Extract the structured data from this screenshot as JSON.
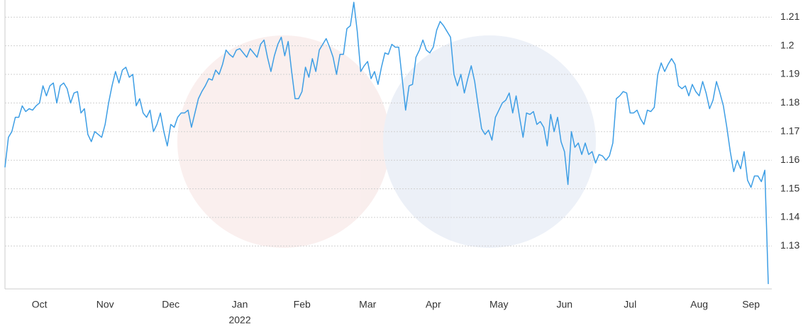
{
  "chart_data": {
    "type": "line",
    "values": [
      1.1575,
      1.168,
      1.17,
      1.175,
      1.175,
      1.179,
      1.177,
      1.178,
      1.1775,
      1.179,
      1.18,
      1.186,
      1.1825,
      1.186,
      1.187,
      1.18,
      1.186,
      1.187,
      1.185,
      1.18,
      1.1835,
      1.184,
      1.1765,
      1.178,
      1.169,
      1.1665,
      1.17,
      1.169,
      1.168,
      1.1725,
      1.18,
      1.186,
      1.191,
      1.187,
      1.1915,
      1.1925,
      1.189,
      1.19,
      1.179,
      1.1815,
      1.1765,
      1.175,
      1.1775,
      1.17,
      1.1725,
      1.1765,
      1.17,
      1.165,
      1.1725,
      1.1715,
      1.175,
      1.1765,
      1.1765,
      1.1775,
      1.1715,
      1.1765,
      1.1815,
      1.184,
      1.186,
      1.1885,
      1.188,
      1.1915,
      1.19,
      1.1935,
      1.1985,
      1.197,
      1.196,
      1.1985,
      1.199,
      1.1975,
      1.196,
      1.199,
      1.1975,
      1.196,
      1.2005,
      1.202,
      1.196,
      1.191,
      1.1965,
      1.2005,
      1.203,
      1.1965,
      1.2015,
      1.191,
      1.1815,
      1.1815,
      1.184,
      1.1925,
      1.189,
      1.1955,
      1.191,
      1.1985,
      1.2005,
      1.2025,
      1.1995,
      1.196,
      1.19,
      1.197,
      1.197,
      1.206,
      1.207,
      1.2152,
      1.205,
      1.191,
      1.193,
      1.1945,
      1.1885,
      1.191,
      1.1865,
      1.1925,
      1.1975,
      1.197,
      1.2005,
      1.1995,
      1.1995,
      1.1885,
      1.1775,
      1.186,
      1.1865,
      1.196,
      1.1985,
      1.202,
      1.1985,
      1.1975,
      1.1995,
      1.2055,
      1.2085,
      1.207,
      1.205,
      1.203,
      1.19,
      1.186,
      1.19,
      1.1835,
      1.1885,
      1.193,
      1.1875,
      1.179,
      1.171,
      1.169,
      1.1705,
      1.167,
      1.175,
      1.1775,
      1.18,
      1.181,
      1.1835,
      1.1765,
      1.1825,
      1.175,
      1.168,
      1.1765,
      1.176,
      1.177,
      1.1725,
      1.1735,
      1.1715,
      1.165,
      1.176,
      1.17,
      1.175,
      1.1665,
      1.163,
      1.1515,
      1.17,
      1.1645,
      1.166,
      1.162,
      1.166,
      1.162,
      1.163,
      1.159,
      1.162,
      1.1615,
      1.16,
      1.1615,
      1.166,
      1.1815,
      1.1825,
      1.184,
      1.1835,
      1.1765,
      1.1765,
      1.1775,
      1.1745,
      1.1725,
      1.1775,
      1.177,
      1.1785,
      1.19,
      1.194,
      1.191,
      1.1935,
      1.1955,
      1.1935,
      1.186,
      1.185,
      1.186,
      1.1825,
      1.1865,
      1.184,
      1.1825,
      1.1875,
      1.1835,
      1.178,
      1.181,
      1.1875,
      1.1835,
      1.179,
      1.1715,
      1.163,
      1.156,
      1.16,
      1.157,
      1.163,
      1.153,
      1.1505,
      1.1545,
      1.1545,
      1.1525,
      1.1565,
      1.1167
    ],
    "color": "#3d9ee5",
    "ylim": [
      1.115,
      1.216
    ],
    "yticks": [
      1.13,
      1.14,
      1.15,
      1.16,
      1.17,
      1.18,
      1.19,
      1.2,
      1.21
    ],
    "xticks": [
      {
        "value": 10,
        "label": "Oct"
      },
      {
        "value": 29,
        "label": "Nov"
      },
      {
        "value": 48,
        "label": "Dec"
      },
      {
        "value": 68,
        "label": "Jan"
      },
      {
        "value": 86,
        "label": "Feb"
      },
      {
        "value": 105,
        "label": "Mar"
      },
      {
        "value": 124,
        "label": "Apr"
      },
      {
        "value": 143,
        "label": "May"
      },
      {
        "value": 162,
        "label": "Jun"
      },
      {
        "value": 181,
        "label": "Jul"
      },
      {
        "value": 201,
        "label": "Aug"
      },
      {
        "value": 216,
        "label": "Sep"
      }
    ],
    "xtick_year": {
      "value": 68,
      "label": "2022"
    },
    "grid": true
  }
}
